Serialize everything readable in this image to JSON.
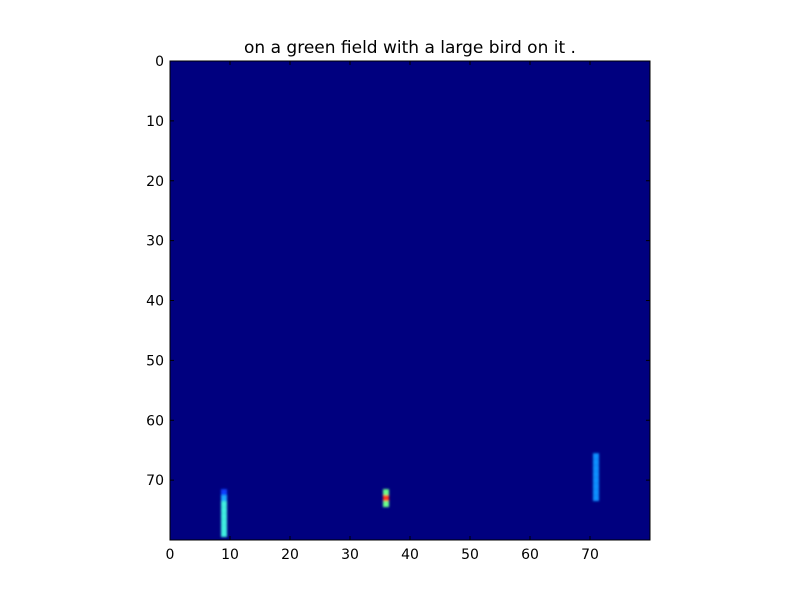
{
  "chart_data": {
    "type": "heatmap",
    "title": "on a green field with a large bird on it .",
    "xlabel": "",
    "ylabel": "",
    "grid": false,
    "legend": "none",
    "xlim": [
      0,
      80
    ],
    "ylim": [
      80,
      0
    ],
    "x_ticks": [
      0,
      10,
      20,
      30,
      40,
      50,
      60,
      70
    ],
    "y_ticks": [
      0,
      10,
      20,
      30,
      40,
      50,
      60,
      70
    ],
    "colormap": "jet",
    "background_color": "#00007f",
    "highlights": [
      {
        "x": 9,
        "y": 72,
        "color": "#0a40ff"
      },
      {
        "x": 9,
        "y": 73,
        "color": "#1aa8ff"
      },
      {
        "x": 9,
        "y": 74,
        "color": "#3ff0e0"
      },
      {
        "x": 9,
        "y": 75,
        "color": "#3ff0e0"
      },
      {
        "x": 9,
        "y": 76,
        "color": "#3ff0e0"
      },
      {
        "x": 9,
        "y": 77,
        "color": "#3ff0e0"
      },
      {
        "x": 9,
        "y": 78,
        "color": "#3ff0e0"
      },
      {
        "x": 9,
        "y": 79,
        "color": "#3ff0e0"
      },
      {
        "x": 36,
        "y": 72,
        "color": "#6aff8a"
      },
      {
        "x": 36,
        "y": 73,
        "color": "#ff3b1a"
      },
      {
        "x": 36,
        "y": 74,
        "color": "#6aff8a"
      },
      {
        "x": 71,
        "y": 66,
        "color": "#0a90ff"
      },
      {
        "x": 71,
        "y": 67,
        "color": "#0a90ff"
      },
      {
        "x": 71,
        "y": 68,
        "color": "#0a90ff"
      },
      {
        "x": 71,
        "y": 69,
        "color": "#0a90ff"
      },
      {
        "x": 71,
        "y": 70,
        "color": "#0a90ff"
      },
      {
        "x": 71,
        "y": 71,
        "color": "#0a90ff"
      },
      {
        "x": 71,
        "y": 72,
        "color": "#0a90ff"
      },
      {
        "x": 71,
        "y": 73,
        "color": "#0a90ff"
      }
    ]
  }
}
